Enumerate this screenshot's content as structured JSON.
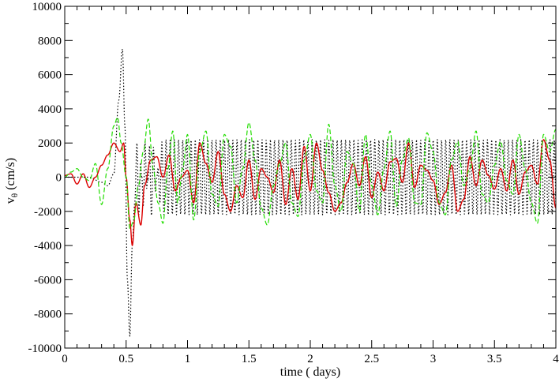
{
  "chart_data": {
    "type": "line",
    "xlabel": "time ( days)",
    "ylabel_main": "v",
    "ylabel_sub": "θ",
    "ylabel_unit": " (cm/s)",
    "xlim": [
      0,
      4
    ],
    "ylim": [
      -10000,
      10000
    ],
    "grid": false,
    "legend": "none",
    "x_ticks": [
      0,
      0.5,
      1,
      1.5,
      2,
      2.5,
      3,
      3.5,
      4
    ],
    "x_tick_labels": [
      "0",
      "0.5",
      "1",
      "1.5",
      "2",
      "2.5",
      "3",
      "3.5",
      "4"
    ],
    "y_ticks": [
      -10000,
      -8000,
      -6000,
      -4000,
      -2000,
      0,
      2000,
      4000,
      6000,
      8000,
      10000
    ],
    "y_tick_labels": [
      "-10000",
      "-8000",
      "-6000",
      "-4000",
      "-2000",
      "0",
      "2000",
      "4000",
      "6000",
      "8000",
      "10000"
    ],
    "series": [
      {
        "style": "dotted",
        "color": "#000000",
        "x": [
          0.0,
          0.1,
          0.2,
          0.3,
          0.35,
          0.4,
          0.44,
          0.47,
          0.49,
          0.51,
          0.53,
          0.55,
          0.57,
          0.6,
          0.65,
          0.7,
          0.8,
          1.0,
          1.5,
          2.0,
          2.5,
          3.0,
          3.5,
          4.0
        ],
        "values": [
          0,
          0,
          0,
          -300,
          -500,
          200,
          4500,
          7500,
          3000,
          -6000,
          -9300,
          -4000,
          -1500,
          -2300,
          2200,
          -2300,
          2200,
          2200,
          2200,
          2200,
          2200,
          2200,
          2200,
          2200
        ],
        "envelope_after": 0.57,
        "oscillation_period_days": 0.034
      },
      {
        "style": "solid",
        "color": "#dd0000",
        "x": [
          0.0,
          0.05,
          0.1,
          0.15,
          0.2,
          0.25,
          0.3,
          0.35,
          0.4,
          0.45,
          0.48,
          0.5,
          0.53,
          0.55,
          0.58,
          0.62,
          0.65,
          0.7,
          0.75,
          0.8,
          0.85,
          0.9,
          0.95,
          1.0,
          1.05,
          1.1,
          1.15,
          1.2,
          1.25,
          1.3,
          1.35,
          1.4,
          1.45,
          1.5,
          1.55,
          1.6,
          1.65,
          1.7,
          1.75,
          1.8,
          1.85,
          1.9,
          1.95,
          2.0,
          2.05,
          2.1,
          2.15,
          2.2,
          2.25,
          2.3,
          2.35,
          2.4,
          2.45,
          2.5,
          2.55,
          2.6,
          2.65,
          2.7,
          2.75,
          2.8,
          2.85,
          2.9,
          2.95,
          3.0,
          3.05,
          3.1,
          3.15,
          3.2,
          3.25,
          3.3,
          3.35,
          3.4,
          3.45,
          3.5,
          3.55,
          3.6,
          3.65,
          3.7,
          3.75,
          3.8,
          3.85,
          3.9,
          3.95,
          4.0
        ],
        "values": [
          100,
          200,
          -400,
          200,
          -600,
          0,
          700,
          1300,
          2000,
          1500,
          2000,
          0,
          -2500,
          -4000,
          -1500,
          -2800,
          -500,
          1000,
          1200,
          0,
          1300,
          -800,
          0,
          400,
          -1500,
          2000,
          800,
          -300,
          1500,
          -1000,
          -2000,
          -500,
          -1200,
          1000,
          -1300,
          500,
          0,
          -900,
          1000,
          -1600,
          500,
          -1300,
          1800,
          -800,
          2000,
          400,
          -900,
          -2000,
          -1500,
          -300,
          800,
          -500,
          1200,
          -1200,
          300,
          -800,
          900,
          1100,
          -300,
          2000,
          -600,
          700,
          400,
          -200,
          -1600,
          -900,
          700,
          -2000,
          -1300,
          1200,
          -500,
          1000,
          100,
          -700,
          500,
          -800,
          1000,
          -1000,
          300,
          700,
          -400,
          2200,
          1000,
          -1800
        ]
      },
      {
        "style": "dashed",
        "color": "#22dd00",
        "x": [
          0.0,
          0.05,
          0.1,
          0.15,
          0.2,
          0.25,
          0.3,
          0.35,
          0.4,
          0.43,
          0.46,
          0.5,
          0.53,
          0.56,
          0.6,
          0.64,
          0.68,
          0.72,
          0.76,
          0.8,
          0.84,
          0.88,
          0.92,
          0.96,
          1.0,
          1.05,
          1.1,
          1.15,
          1.2,
          1.25,
          1.3,
          1.35,
          1.4,
          1.45,
          1.5,
          1.55,
          1.6,
          1.65,
          1.7,
          1.75,
          1.8,
          1.85,
          1.9,
          1.95,
          2.0,
          2.05,
          2.1,
          2.15,
          2.2,
          2.25,
          2.3,
          2.35,
          2.4,
          2.45,
          2.5,
          2.55,
          2.6,
          2.65,
          2.7,
          2.75,
          2.8,
          2.85,
          2.9,
          2.95,
          3.0,
          3.05,
          3.1,
          3.15,
          3.2,
          3.25,
          3.3,
          3.35,
          3.4,
          3.45,
          3.5,
          3.55,
          3.6,
          3.65,
          3.7,
          3.75,
          3.8,
          3.85,
          3.9,
          3.95,
          4.0
        ],
        "values": [
          0,
          300,
          500,
          0,
          -200,
          800,
          -1600,
          500,
          3000,
          3500,
          2000,
          0,
          -3000,
          -2600,
          -500,
          1500,
          3400,
          500,
          -1500,
          -2700,
          500,
          2700,
          -1500,
          500,
          2500,
          -2500,
          1500,
          2700,
          -1000,
          -1700,
          2500,
          1800,
          -1500,
          500,
          3200,
          1000,
          -1800,
          -2800,
          -500,
          800,
          2000,
          -1500,
          -2300,
          1000,
          2500,
          -800,
          -1500,
          3100,
          -500,
          -2000,
          1500,
          800,
          -2000,
          2500,
          -500,
          -2200,
          500,
          2700,
          -1700,
          1000,
          2300,
          -1500,
          -1600,
          2600,
          1500,
          -1500,
          -2200,
          1000,
          2100,
          -500,
          500,
          2700,
          -1000,
          -1500,
          700,
          2100,
          -200,
          -1000,
          2500,
          500,
          -1500,
          -2700,
          2500,
          1500,
          2800
        ]
      }
    ]
  }
}
